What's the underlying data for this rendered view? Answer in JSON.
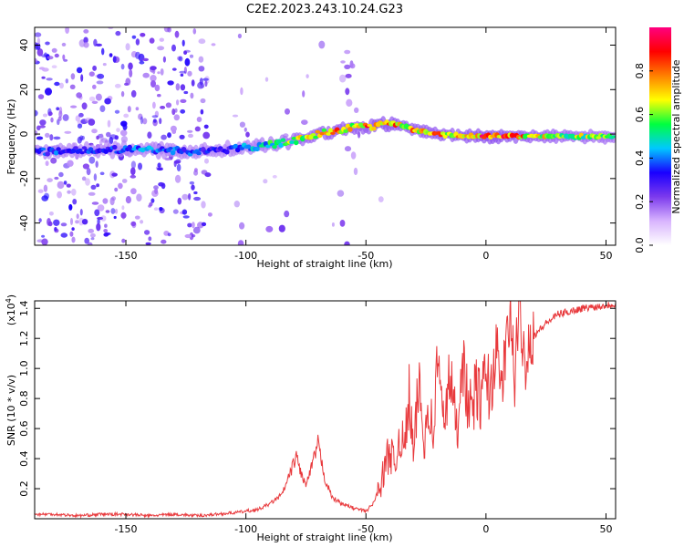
{
  "title": "C2E2.2023.243.10.24.G23",
  "chart_data": [
    {
      "type": "heatmap",
      "title": "C2E2.2023.243.10.24.G23",
      "xlabel": "Height of straight line (km)",
      "ylabel": "Frequency (Hz)",
      "xlim": [
        -188,
        54
      ],
      "ylim": [
        -50,
        48
      ],
      "xticks": [
        -150,
        -100,
        -50,
        0,
        50
      ],
      "yticks": [
        -40,
        -20,
        0,
        20,
        40
      ],
      "colorbar": {
        "label": "Normalized spectral amplitude",
        "range": [
          0,
          1
        ],
        "ticks": [
          0.0,
          0.2,
          0.4,
          0.6,
          0.8
        ],
        "colormap": [
          "#ffffff",
          "#d8b4fe",
          "#7c3aed",
          "#1a00ff",
          "#00c8ff",
          "#00ff40",
          "#ffff00",
          "#ff8000",
          "#ff0000",
          "#ff0080"
        ]
      },
      "ridge": {
        "x": [
          -188,
          -160,
          -140,
          -120,
          -110,
          -100,
          -90,
          -80,
          -70,
          -60,
          -55,
          -50,
          -45,
          -40,
          -35,
          -30,
          -20,
          -10,
          0,
          10,
          20,
          30,
          40,
          50,
          54
        ],
        "frequency": [
          -8,
          -7,
          -7,
          -8,
          -7,
          -6,
          -5,
          -3,
          0,
          2,
          3,
          3,
          4,
          5,
          4,
          2,
          0,
          -1,
          -1,
          -1,
          -1,
          -1,
          -1,
          -1,
          -1
        ],
        "amplitude": [
          0.35,
          0.35,
          0.4,
          0.35,
          0.3,
          0.4,
          0.5,
          0.6,
          0.7,
          0.75,
          0.7,
          0.75,
          0.8,
          0.8,
          0.75,
          0.7,
          0.75,
          0.75,
          0.85,
          0.8,
          0.7,
          0.65,
          0.6,
          0.55,
          0.5
        ]
      }
    },
    {
      "type": "line",
      "xlabel": "Height of straight line (km)",
      "ylabel": "SNR (10 * v/v)",
      "scale_label": "(x10",
      "scale_exp": "4",
      "ylabel_rot": ")",
      "xlim": [
        -188,
        54
      ],
      "ylim": [
        0,
        1.45
      ],
      "xticks": [
        -150,
        -100,
        -50,
        0,
        50
      ],
      "yticks": [
        0.2,
        0.4,
        0.6,
        0.8,
        1.0,
        1.2,
        1.4
      ],
      "ytick_labels": [
        "0.2",
        "0.4",
        "0.6",
        "0.8",
        "1.0",
        "1.2",
        "1.4"
      ],
      "color": "#e8393c",
      "series": [
        {
          "x": [
            -188,
            -180,
            -170,
            -160,
            -150,
            -140,
            -130,
            -120,
            -112,
            -105,
            -100,
            -95,
            -90,
            -85,
            -82,
            -79,
            -77,
            -75,
            -73,
            -70,
            -67,
            -64,
            -60,
            -55,
            -50,
            -47,
            -45,
            -43,
            -40,
            -38,
            -36,
            -34,
            -32,
            -30,
            -28,
            -26,
            -24,
            -22,
            -20,
            -18,
            -15,
            -12,
            -10,
            -7,
            -4,
            -2,
            0,
            2,
            4,
            6,
            8,
            10,
            12,
            14,
            16,
            18,
            20,
            25,
            30,
            35,
            40,
            45,
            50,
            54
          ],
          "y": [
            0.03,
            0.03,
            0.02,
            0.03,
            0.03,
            0.02,
            0.03,
            0.02,
            0.03,
            0.04,
            0.05,
            0.06,
            0.1,
            0.16,
            0.28,
            0.42,
            0.3,
            0.22,
            0.32,
            0.5,
            0.26,
            0.14,
            0.1,
            0.07,
            0.05,
            0.1,
            0.18,
            0.28,
            0.48,
            0.32,
            0.58,
            0.45,
            0.82,
            0.4,
            0.94,
            0.5,
            0.78,
            0.55,
            1.12,
            0.62,
            0.95,
            0.58,
            1.1,
            0.7,
            0.86,
            0.78,
            0.98,
            0.82,
            1.15,
            0.88,
            1.05,
            1.35,
            0.95,
            1.4,
            1.05,
            1.18,
            1.22,
            1.3,
            1.36,
            1.38,
            1.4,
            1.41,
            1.42,
            1.43
          ]
        }
      ]
    }
  ]
}
